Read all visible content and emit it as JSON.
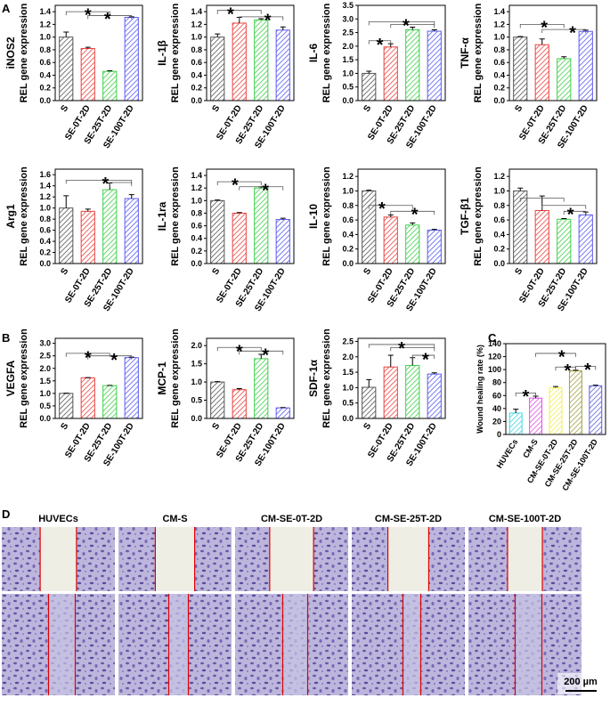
{
  "panel_labels": [
    "A",
    "B",
    "C",
    "D"
  ],
  "chart_data": [
    {
      "type": "bar",
      "title": "iNOS2",
      "ylabel": "REL gene expression",
      "categories": [
        "S",
        "SE-0T-2D",
        "SE-25T-2D",
        "SE-100T-2D"
      ],
      "values": [
        1.0,
        0.82,
        0.46,
        1.31
      ],
      "errors": [
        0.08,
        0.02,
        0.01,
        0.01
      ],
      "colors": [
        "#555555",
        "#e8433f",
        "#3fcf4a",
        "#5b5bef"
      ],
      "ylim": [
        0,
        1.5
      ],
      "yticks": [
        {
          "value": 0,
          "label": "0.0"
        },
        0.2,
        0.4,
        0.6,
        0.8,
        {
          "value": 1,
          "label": "1.0"
        },
        1.2,
        1.4
      ],
      "annotations": [
        "*",
        "*"
      ]
    },
    {
      "type": "bar",
      "title": "IL-1β",
      "ylabel": "REL gene expression",
      "categories": [
        "S",
        "SE-0T-2D",
        "SE-25T-2D",
        "SE-100T-2D"
      ],
      "values": [
        1.0,
        1.22,
        1.27,
        1.11
      ],
      "errors": [
        0.05,
        0.09,
        0.02,
        0.05
      ],
      "colors": [
        "#555555",
        "#e8433f",
        "#3fcf4a",
        "#5b5bef"
      ],
      "ylim": [
        0,
        1.5
      ],
      "yticks": [
        {
          "value": 0,
          "label": "0.0"
        },
        0.2,
        0.4,
        0.6,
        0.8,
        {
          "value": 1,
          "label": "1.0"
        },
        1.2,
        1.4
      ],
      "annotations": [
        "*",
        "*"
      ]
    },
    {
      "type": "bar",
      "title": "IL-6",
      "ylabel": "REL gene expression",
      "categories": [
        "S",
        "SE-0T-2D",
        "SE-25T-2D",
        "SE-100T-2D"
      ],
      "values": [
        1.0,
        1.97,
        2.6,
        2.55
      ],
      "errors": [
        0.08,
        0.12,
        0.1,
        0.05
      ],
      "colors": [
        "#555555",
        "#e8433f",
        "#3fcf4a",
        "#5b5bef"
      ],
      "ylim": [
        0,
        3.5
      ],
      "yticks": [
        {
          "value": 0,
          "label": "0.0"
        },
        0.5,
        {
          "value": 1,
          "label": "1.0"
        },
        1.5,
        {
          "value": 2,
          "label": "2.0"
        },
        2.5,
        {
          "value": 3,
          "label": "3.0"
        },
        3.5
      ],
      "annotations": [
        "*",
        "*"
      ]
    },
    {
      "type": "bar",
      "title": "TNF-α",
      "ylabel": "REL gene expression",
      "categories": [
        "S",
        "SE-0T-2D",
        "SE-25T-2D",
        "SE-100T-2D"
      ],
      "values": [
        1.0,
        0.88,
        0.66,
        1.09
      ],
      "errors": [
        0.01,
        0.09,
        0.03,
        0.02
      ],
      "colors": [
        "#555555",
        "#e8433f",
        "#3fcf4a",
        "#5b5bef"
      ],
      "ylim": [
        0,
        1.5
      ],
      "yticks": [
        {
          "value": 0,
          "label": "0.0"
        },
        0.2,
        0.4,
        0.6,
        0.8,
        {
          "value": 1,
          "label": "1.0"
        },
        1.2,
        1.4
      ],
      "annotations": [
        "*",
        "*"
      ]
    },
    {
      "type": "bar",
      "title": "Arg1",
      "ylabel": "REL gene expression",
      "categories": [
        "S",
        "SE-0T-2D",
        "SE-25T-2D",
        "SE-100T-2D"
      ],
      "values": [
        1.0,
        0.94,
        1.33,
        1.17
      ],
      "errors": [
        0.22,
        0.04,
        0.12,
        0.07
      ],
      "colors": [
        "#555555",
        "#e8433f",
        "#3fcf4a",
        "#5b5bef"
      ],
      "ylim": [
        0,
        1.7
      ],
      "yticks": [
        {
          "value": 0,
          "label": "0.0"
        },
        0.2,
        0.4,
        0.6,
        0.8,
        {
          "value": 1,
          "label": "1.0"
        },
        1.2,
        1.4,
        1.6
      ],
      "annotations": [
        "*"
      ]
    },
    {
      "type": "bar",
      "title": "IL-1ra",
      "ylabel": "REL gene expression",
      "categories": [
        "S",
        "SE-0T-2D",
        "SE-25T-2D",
        "SE-100T-2D"
      ],
      "values": [
        1.0,
        0.8,
        1.2,
        0.7
      ],
      "errors": [
        0.01,
        0.01,
        0.02,
        0.02
      ],
      "colors": [
        "#555555",
        "#e8433f",
        "#3fcf4a",
        "#5b5bef"
      ],
      "ylim": [
        0,
        1.5
      ],
      "yticks": [
        {
          "value": 0,
          "label": "0.0"
        },
        0.2,
        0.4,
        0.6,
        0.8,
        {
          "value": 1,
          "label": "1.0"
        },
        1.2,
        1.4
      ],
      "annotations": [
        "*",
        "*"
      ]
    },
    {
      "type": "bar",
      "title": "IL-10",
      "ylabel": "REL gene expression",
      "categories": [
        "S",
        "SE-0T-2D",
        "SE-25T-2D",
        "SE-100T-2D"
      ],
      "values": [
        1.0,
        0.64,
        0.53,
        0.46
      ],
      "errors": [
        0.01,
        0.03,
        0.03,
        0.01
      ],
      "colors": [
        "#555555",
        "#e8433f",
        "#3fcf4a",
        "#5b5bef"
      ],
      "ylim": [
        0,
        1.3
      ],
      "yticks": [
        {
          "value": 0,
          "label": "0.0"
        },
        0.2,
        0.4,
        0.6,
        0.8,
        {
          "value": 1,
          "label": "1.0"
        },
        1.2
      ],
      "annotations": [
        "*",
        "*"
      ]
    },
    {
      "type": "bar",
      "title": "TGF-β1",
      "ylabel": "REL gene expression",
      "categories": [
        "S",
        "SE-0T-2D",
        "SE-25T-2D",
        "SE-100T-2D"
      ],
      "values": [
        1.0,
        0.73,
        0.61,
        0.67
      ],
      "errors": [
        0.04,
        0.2,
        0.01,
        0.04
      ],
      "colors": [
        "#555555",
        "#e8433f",
        "#3fcf4a",
        "#5b5bef"
      ],
      "ylim": [
        0,
        1.3
      ],
      "yticks": [
        {
          "value": 0,
          "label": "0.0"
        },
        0.2,
        0.4,
        0.6,
        0.8,
        {
          "value": 1,
          "label": "1.0"
        },
        1.2
      ],
      "annotations": [
        "*",
        "*"
      ]
    },
    {
      "type": "bar",
      "title": "VEGFA",
      "ylabel": "REL gene expression",
      "categories": [
        "S",
        "SE-0T-2D",
        "SE-25T-2D",
        "SE-100T-2D"
      ],
      "values": [
        1.0,
        1.62,
        1.31,
        2.43
      ],
      "errors": [
        0.01,
        0.01,
        0.01,
        0.02
      ],
      "colors": [
        "#555555",
        "#e8433f",
        "#3fcf4a",
        "#5b5bef"
      ],
      "ylim": [
        0,
        3.2
      ],
      "yticks": [
        {
          "value": 0,
          "label": "0.0"
        },
        0.5,
        {
          "value": 1,
          "label": "1.0"
        },
        1.5,
        {
          "value": 2,
          "label": "2.0"
        },
        2.5,
        {
          "value": 3,
          "label": "3.0"
        }
      ],
      "annotations": [
        "*",
        "*"
      ]
    },
    {
      "type": "bar",
      "title": "MCP-1",
      "ylabel": "REL gene expression",
      "categories": [
        "S",
        "SE-0T-2D",
        "SE-25T-2D",
        "SE-100T-2D"
      ],
      "values": [
        1.0,
        0.79,
        1.64,
        0.29
      ],
      "errors": [
        0.01,
        0.03,
        0.12,
        0.01
      ],
      "colors": [
        "#555555",
        "#e8433f",
        "#3fcf4a",
        "#5b5bef"
      ],
      "ylim": [
        0,
        2.2
      ],
      "yticks": [
        {
          "value": 0,
          "label": "0.0"
        },
        0.5,
        {
          "value": 1,
          "label": "1.0"
        },
        1.5,
        {
          "value": 2,
          "label": "2.0"
        }
      ],
      "annotations": [
        "*",
        "*"
      ]
    },
    {
      "type": "bar",
      "title": "SDF-1α",
      "ylabel": "REL gene expression",
      "categories": [
        "S",
        "SE-0T-2D",
        "SE-25T-2D",
        "SE-100T-2D"
      ],
      "values": [
        1.01,
        1.67,
        1.72,
        1.44
      ],
      "errors": [
        0.25,
        0.38,
        0.25,
        0.04
      ],
      "colors": [
        "#555555",
        "#e8433f",
        "#3fcf4a",
        "#5b5bef"
      ],
      "ylim": [
        0,
        2.6
      ],
      "yticks": [
        {
          "value": 0,
          "label": "0.0"
        },
        0.5,
        {
          "value": 1,
          "label": "1.0"
        },
        1.5,
        {
          "value": 2,
          "label": "2.0"
        },
        2.5
      ],
      "annotations": [
        "*",
        "*"
      ]
    },
    {
      "type": "bar",
      "ylabel": "Wound healing rate (%)",
      "categories": [
        "HUVECs",
        "CM-S",
        "CM-SE-0T-2D",
        "CM-SE-25T-2D",
        "CM-SE-100T-2D"
      ],
      "values": [
        33,
        56,
        72,
        98,
        75
      ],
      "errors": [
        6,
        3,
        2,
        1,
        1
      ],
      "colors": [
        "#3fd6e0",
        "#e050e0",
        "#f0f050",
        "#a0a040",
        "#6060d8"
      ],
      "ylim": [
        0,
        140
      ],
      "yticks": [
        0,
        20,
        40,
        60,
        80,
        100,
        120,
        140
      ],
      "annotations": [
        "*",
        "*",
        "*",
        "*"
      ]
    }
  ],
  "micrographs": {
    "titles": [
      "HUVECs",
      "CM-S",
      "CM-SE-0T-2D",
      "CM-SE-25T-2D",
      "CM-SE-100T-2D"
    ],
    "scale_bar": "200 µm"
  }
}
